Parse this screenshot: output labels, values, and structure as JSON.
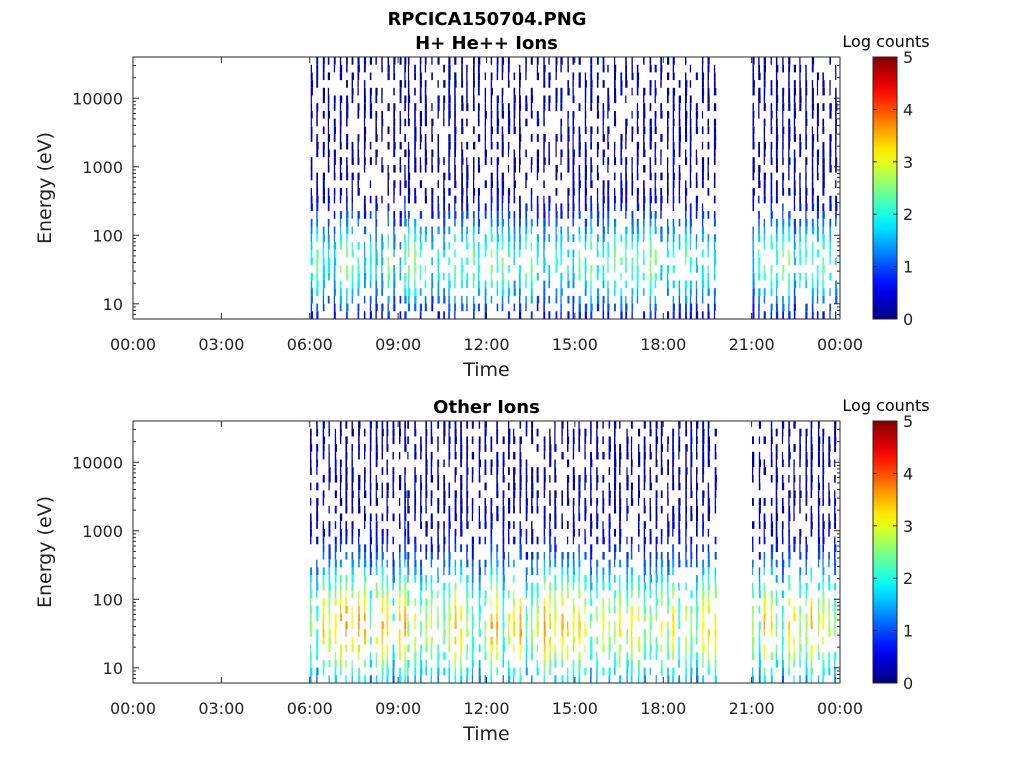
{
  "figure": {
    "title_line1": "RPCICA150704.PNG"
  },
  "chart_data": [
    {
      "type": "heatmap",
      "title": "H+ He++ Ions",
      "xlabel": "Time",
      "ylabel": "Energy (eV)",
      "x_ticks": [
        "00:00",
        "03:00",
        "06:00",
        "09:00",
        "12:00",
        "15:00",
        "18:00",
        "21:00",
        "00:00"
      ],
      "x_range_hours": [
        0,
        24
      ],
      "y_scale": "log",
      "y_ticks": [
        "10",
        "100",
        "1000",
        "10000"
      ],
      "y_range": [
        6,
        40000
      ],
      "colorbar": {
        "title": "Log counts",
        "ticks": [
          "0",
          "1",
          "2",
          "3",
          "4",
          "5"
        ],
        "range": [
          0,
          5
        ],
        "colormap": "jet"
      },
      "data_intervals_hours": [
        [
          6.0,
          9.2
        ],
        [
          9.3,
          19.7
        ],
        [
          21.0,
          24.0
        ]
      ],
      "sweep_spacing_hours": 0.2,
      "peak_log_counts": 2.5,
      "peak_energy_eV": 40
    },
    {
      "type": "heatmap",
      "title": "Other Ions",
      "xlabel": "Time",
      "ylabel": "Energy (eV)",
      "x_ticks": [
        "00:00",
        "03:00",
        "06:00",
        "09:00",
        "12:00",
        "15:00",
        "18:00",
        "21:00",
        "00:00"
      ],
      "x_range_hours": [
        0,
        24
      ],
      "y_scale": "log",
      "y_ticks": [
        "10",
        "100",
        "1000",
        "10000"
      ],
      "y_range": [
        6,
        40000
      ],
      "colorbar": {
        "title": "Log counts",
        "ticks": [
          "0",
          "1",
          "2",
          "3",
          "4",
          "5"
        ],
        "range": [
          0,
          5
        ],
        "colormap": "jet"
      },
      "data_intervals_hours": [
        [
          6.0,
          9.2
        ],
        [
          9.3,
          19.7
        ],
        [
          21.0,
          24.0
        ]
      ],
      "sweep_spacing_hours": 0.2,
      "peak_log_counts": 3.6,
      "peak_energy_eV": 40
    }
  ]
}
